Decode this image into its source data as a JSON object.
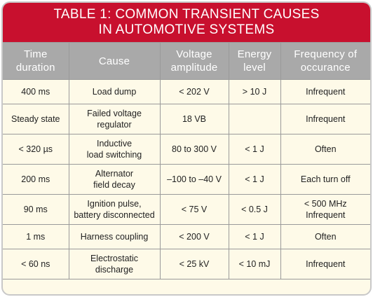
{
  "title": {
    "line1": "TABLE 1: COMMON TRANSIENT CAUSES",
    "line2": "IN AUTOMOTIVE SYSTEMS"
  },
  "colors": {
    "title_bg": "#c8102e",
    "header_bg": "#a9a9a9",
    "body_bg": "#fefae8",
    "grid": "#9a9a9a"
  },
  "headers": [
    [
      "Time",
      "duration"
    ],
    [
      "Cause"
    ],
    [
      "Voltage",
      "amplitude"
    ],
    [
      "Energy",
      "level"
    ],
    [
      "Frequency of",
      "occurance"
    ]
  ],
  "rows": [
    {
      "cells": [
        [
          "400 ms"
        ],
        [
          "Load dump"
        ],
        [
          "< 202 V"
        ],
        [
          "> 10 J"
        ],
        [
          "Infrequent"
        ]
      ]
    },
    {
      "cells": [
        [
          "Steady state"
        ],
        [
          "Failed voltage",
          "regulator"
        ],
        [
          "18 VB"
        ],
        [
          ""
        ],
        [
          "Infrequent"
        ]
      ]
    },
    {
      "cells": [
        [
          "< 320 µs"
        ],
        [
          "Inductive",
          "load switching"
        ],
        [
          "80 to 300 V"
        ],
        [
          "< 1 J"
        ],
        [
          "Often"
        ]
      ]
    },
    {
      "cells": [
        [
          "200 ms"
        ],
        [
          "Alternator",
          "field decay"
        ],
        [
          "–100 to –40 V"
        ],
        [
          "< 1 J"
        ],
        [
          "Each turn off"
        ]
      ]
    },
    {
      "cells": [
        [
          "90 ms"
        ],
        [
          "Ignition pulse,",
          "battery disconnected"
        ],
        [
          "< 75 V"
        ],
        [
          "< 0.5 J"
        ],
        [
          "< 500 MHz",
          "Infrequent"
        ]
      ]
    },
    {
      "cells": [
        [
          "1 ms"
        ],
        [
          "Harness coupling"
        ],
        [
          "< 200 V"
        ],
        [
          "< 1 J"
        ],
        [
          "Often"
        ]
      ]
    },
    {
      "cells": [
        [
          "< 60 ns"
        ],
        [
          "Electrostatic",
          "discharge"
        ],
        [
          "< 25 kV"
        ],
        [
          "< 10 mJ"
        ],
        [
          "Infrequent"
        ]
      ]
    }
  ]
}
